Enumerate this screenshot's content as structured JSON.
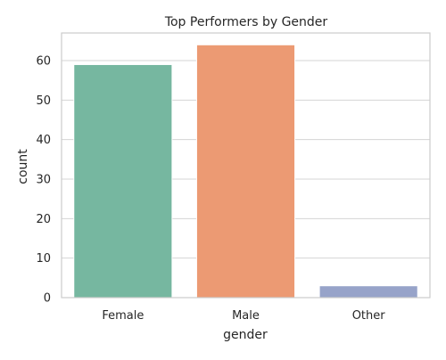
{
  "chart_data": {
    "type": "bar",
    "title": "Top Performers by Gender",
    "xlabel": "gender",
    "ylabel": "count",
    "categories": [
      "Female",
      "Male",
      "Other"
    ],
    "values": [
      59,
      64,
      3
    ],
    "colors": [
      "#76b7a0",
      "#ec9a73",
      "#97a3c9"
    ],
    "ylim": [
      0,
      67
    ],
    "yticks": [
      0,
      10,
      20,
      30,
      40,
      50,
      60
    ],
    "grid": true,
    "background": "#ffffff",
    "grid_color": "#d4d4d4"
  }
}
